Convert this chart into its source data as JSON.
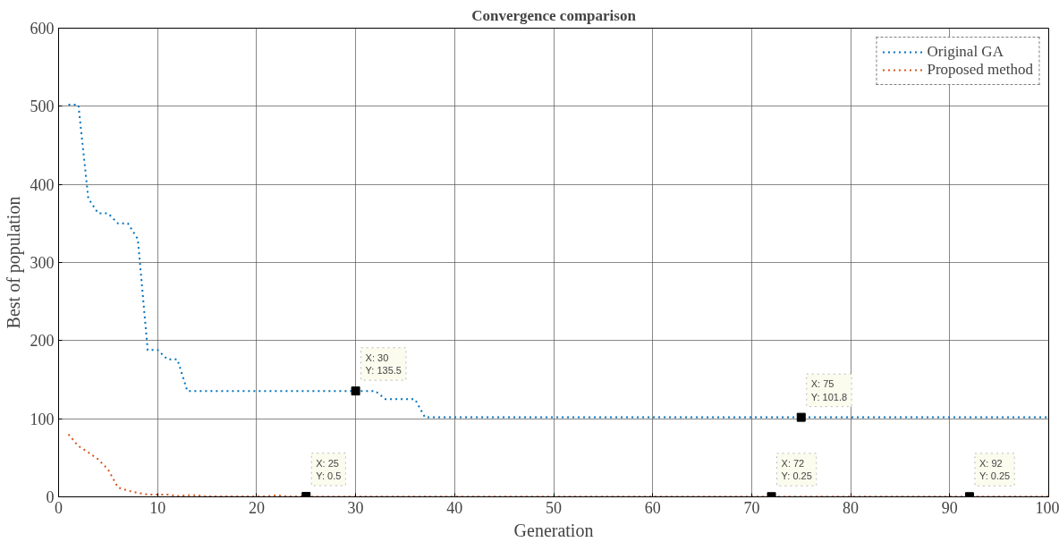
{
  "chart_data": {
    "type": "line",
    "title": "Convergence comparison",
    "xlabel": "Generation",
    "ylabel": "Best of population",
    "xlim": [
      0,
      100
    ],
    "xticks": [
      0,
      10,
      20,
      30,
      40,
      50,
      60,
      70,
      80,
      90,
      100
    ],
    "ylim": [
      0,
      600
    ],
    "yticks": [
      0,
      100,
      200,
      300,
      400,
      500,
      600
    ],
    "grid": true,
    "legend": "top right",
    "line_style": "dotted",
    "marker": "none",
    "series": [
      {
        "name": "Original GA",
        "color": "#0072bd",
        "x": [
          1,
          2,
          3,
          4,
          5,
          6,
          7,
          8,
          9,
          10,
          11,
          12,
          13,
          30,
          32,
          33,
          36,
          37,
          75,
          100
        ],
        "values": [
          502,
          502,
          382,
          363,
          363,
          350,
          350,
          330,
          188,
          188,
          176,
          176,
          135.5,
          135.5,
          135.5,
          125,
          125,
          101.8,
          101.8,
          101.8
        ]
      },
      {
        "name": "Proposed method",
        "color": "#d95319",
        "x": [
          1,
          2,
          3,
          4,
          5,
          6,
          7,
          8,
          9,
          10,
          11,
          12,
          13,
          14,
          15,
          21,
          22,
          23,
          25,
          26,
          72,
          92,
          100
        ],
        "values": [
          80,
          65,
          57,
          48,
          35,
          12,
          8,
          5,
          3,
          3,
          3,
          1,
          2,
          2,
          0.5,
          0.5,
          2,
          0.5,
          0.5,
          0.25,
          0.25,
          0.25,
          0.25
        ]
      }
    ],
    "annotations": [
      {
        "text": "X: 30\nY: 135.5",
        "x": 30,
        "y": 135.5
      },
      {
        "text": "X: 75\nY: 101.8",
        "x": 75,
        "y": 101.8
      },
      {
        "text": "X: 25\nY: 0.5",
        "x": 25,
        "y": 0.5
      },
      {
        "text": "X: 72\nY: 0.25",
        "x": 72,
        "y": 0.25
      },
      {
        "text": "X: 92\nY: 0.25",
        "x": 92,
        "y": 0.25
      }
    ]
  }
}
